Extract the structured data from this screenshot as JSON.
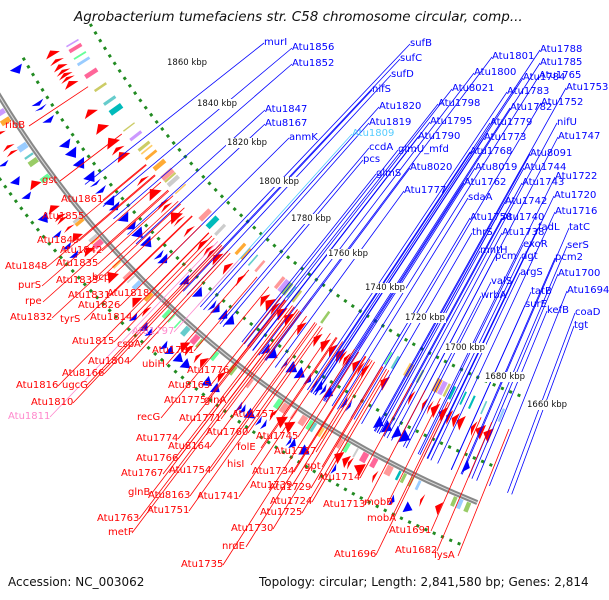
{
  "title": "Agrobacterium tumefaciens str. C58 chromosome circular, comp...",
  "footer": {
    "accession": "Accession: NC_003062",
    "topology": "Topology: circular; Length: 2,841,580 bp; Genes: 2,814"
  },
  "colors": {
    "forward": "#ff0000",
    "reverse": "#0000ff",
    "highlight_forward": "#ff88cc",
    "highlight_reverse": "#55ccff",
    "backbone": "#888888",
    "dotted": "#228b22"
  },
  "scale_labels": [
    "1860 kbp",
    "1840 kbp",
    "1820 kbp",
    "1800 kbp",
    "1780 kbp",
    "1760 kbp",
    "1740 kbp",
    "1720 kbp",
    "1700 kbp",
    "1680 kbp",
    "1660 kbp"
  ],
  "reverse_genes": [
    "murI",
    "Atu1856",
    "Atu1852",
    "sufB",
    "sufC",
    "sufD",
    "Atu1801",
    "Atu1788",
    "Atu1785",
    "Atu1800",
    "Atu1784",
    "nifS",
    "Atu8021",
    "Atu1783",
    "Atu1765",
    "Atu1847",
    "Atu1820",
    "Atu1798",
    "Atu1782",
    "Atu1753",
    "Atu8167",
    "Atu1819",
    "Atu1795",
    "Atu1752",
    "anmK",
    "Atu1779",
    "Atu1809",
    "Atu1790",
    "Atu1773",
    "nifU",
    "ccdA",
    "glmU_mfd",
    "Atu1768",
    "Atu1747",
    "pcs",
    "Atu8091",
    "Atu8020",
    "Atu8019",
    "Atu1744",
    "glmS",
    "Atu1762",
    "Atu1743",
    "Atu1777",
    "sdaA",
    "Atu1722",
    "Atu1742",
    "Atu1720",
    "Atu1758",
    "Atu1716",
    "Atu1740",
    "fadL",
    "thrS",
    "Atu1738",
    "tatC",
    "exoR",
    "serS",
    "mntH",
    "pcm",
    "dgt",
    "pcm2",
    "argS",
    "Atu1700",
    "valS",
    "tatB",
    "Atu1694",
    "wrbA",
    "surE",
    "kefB",
    "coaD",
    "tgt"
  ],
  "forward_genes": [
    "ribB",
    "gst",
    "Atu1861",
    "Atu1855",
    "Atu1849",
    "Atu1842",
    "Atu1848",
    "Atu1835",
    "bcp",
    "purS",
    "Atu1833",
    "rpe",
    "Atu1831",
    "Atu1826",
    "Atu1818",
    "Atu1832",
    "tyrS",
    "Atu1814",
    "Atu1797",
    "Atu1815",
    "cspA",
    "Atu1781",
    "Atu1804",
    "ubiH",
    "Atu8166",
    "Atu1776",
    "Atu1816",
    "ugcG",
    "Atu8165",
    "Atu1810",
    "Atu1775",
    "glnA",
    "Atu1811",
    "recG",
    "Atu1771",
    "Atu1757",
    "Atu1774",
    "Atu1760",
    "Atu8164",
    "Atu1745",
    "Atu1766",
    "folE",
    "Atu1737",
    "Atu1767",
    "Atu1754",
    "hisI",
    "Atu1734",
    "gpt",
    "glnB",
    "Atu1714",
    "Atu8163",
    "Atu1741",
    "Atu1739",
    "Atu1729",
    "Atu1751",
    "Atu1724",
    "Atu1763",
    "Atu1725",
    "Atu1713",
    "metF",
    "mobB",
    "Atu1730",
    "mobA",
    "nrdE",
    "Atu1691",
    "Atu1682",
    "Atu1696",
    "lysA",
    "Atu1735"
  ]
}
